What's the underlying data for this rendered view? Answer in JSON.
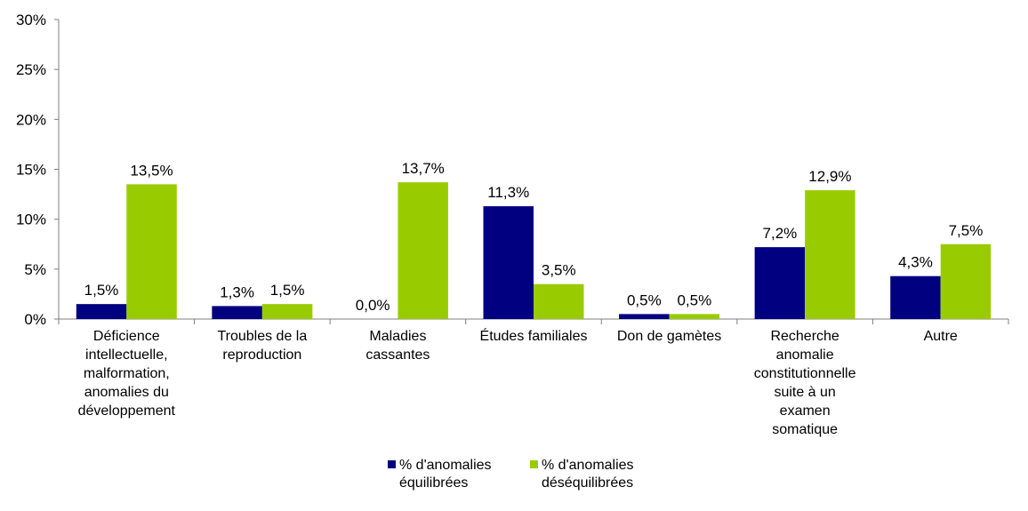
{
  "chart_data": {
    "type": "bar",
    "title": "",
    "xlabel": "",
    "ylabel": "",
    "ylim": [
      0,
      30
    ],
    "yticks": [
      "0%",
      "5%",
      "10%",
      "15%",
      "20%",
      "25%",
      "30%"
    ],
    "grid": false,
    "legend_position": "bottom",
    "categories": [
      "Déficience intellectuelle, malformation, anomalies du développement",
      "Troubles de la reproduction",
      "Maladies cassantes",
      "Études familiales",
      "Don de gamètes",
      "Recherche anomalie constitutionnelle suite à  un examen somatique",
      "Autre"
    ],
    "category_lines": [
      [
        "Déficience",
        "intellectuelle,",
        "malformation,",
        "anomalies du",
        "développement"
      ],
      [
        "Troubles de la",
        "reproduction"
      ],
      [
        "Maladies",
        "cassantes"
      ],
      [
        "Études familiales"
      ],
      [
        "Don de gamètes"
      ],
      [
        "Recherche",
        "anomalie",
        "constitutionnelle",
        "suite à  un",
        "examen",
        "somatique"
      ],
      [
        "Autre"
      ]
    ],
    "series": [
      {
        "name": "% d'anomalies équilibrées",
        "name_lines": [
          "% d'anomalies",
          "équilibrées"
        ],
        "color": "#000080",
        "values": [
          1.5,
          1.3,
          0.0,
          11.3,
          0.5,
          7.2,
          4.3
        ],
        "labels": [
          "1,5%",
          "1,3%",
          "0,0%",
          "11,3%",
          "0,5%",
          "7,2%",
          "4,3%"
        ]
      },
      {
        "name": "% d'anomalies déséquilibrées",
        "name_lines": [
          "% d'anomalies",
          "déséquilibrées"
        ],
        "color": "#99cc00",
        "values": [
          13.5,
          1.5,
          13.7,
          3.5,
          0.5,
          12.9,
          7.5
        ],
        "labels": [
          "13,5%",
          "1,5%",
          "13,7%",
          "3,5%",
          "0,5%",
          "12,9%",
          "7,5%"
        ]
      }
    ]
  }
}
